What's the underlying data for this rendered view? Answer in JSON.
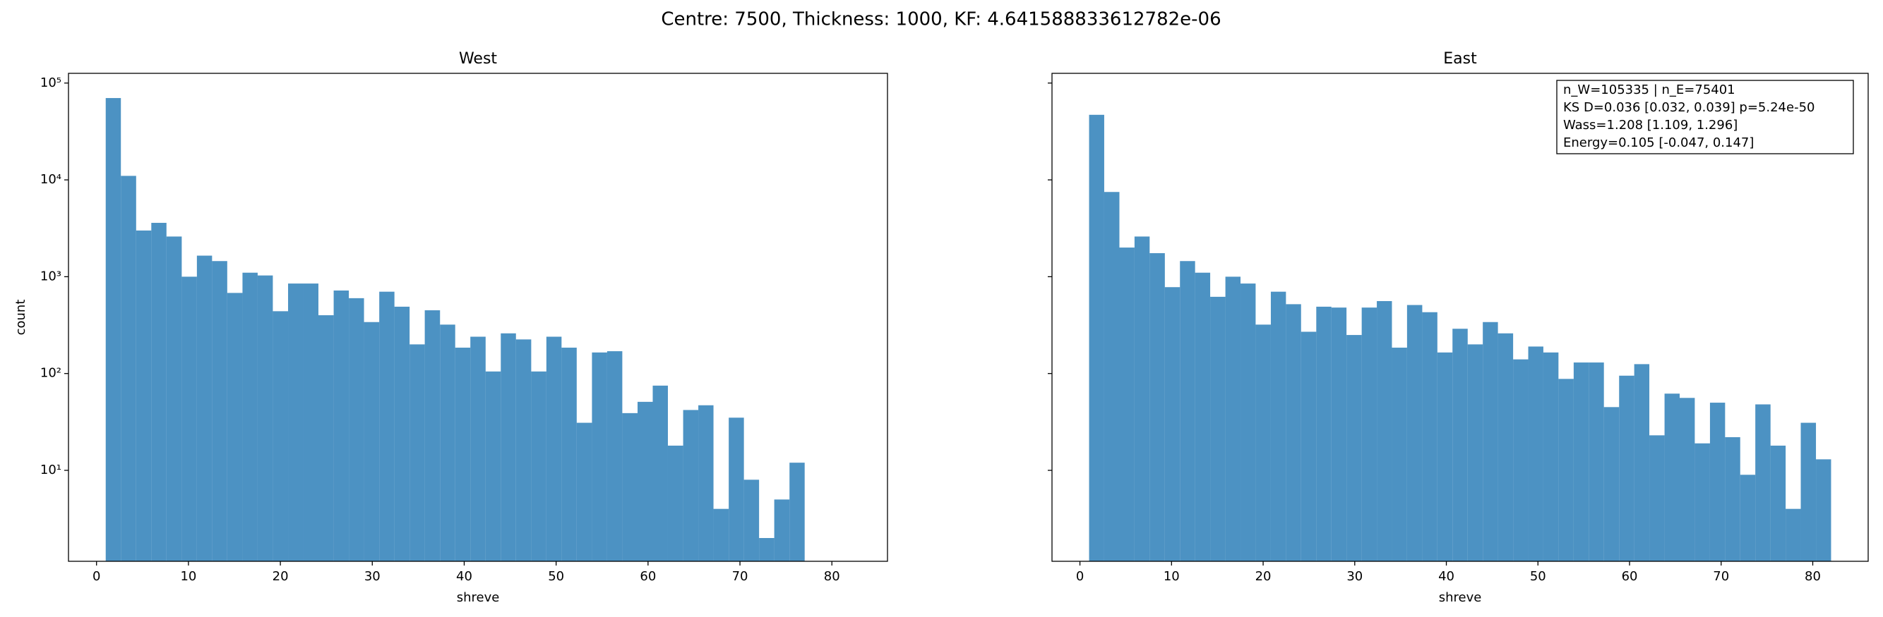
{
  "title": "Centre: 7500, Thickness: 1000, KF: 4.641588833612782e-06",
  "chart_data": [
    {
      "type": "histogram",
      "title": "West",
      "xlabel": "shreve",
      "ylabel": "count",
      "color": "#1f77b4",
      "log_y": true,
      "bins": [
        1,
        2.65,
        4.31,
        5.96,
        7.61,
        9.27,
        10.92,
        12.57,
        14.22,
        15.88,
        17.53,
        19.18,
        20.84,
        22.49,
        24.14,
        25.8,
        27.45,
        29.1,
        30.76,
        32.41,
        34.06,
        35.71,
        37.37,
        39.02,
        40.67,
        42.33,
        43.98,
        45.63,
        47.29,
        48.94,
        50.59,
        52.24,
        53.9,
        55.55,
        57.2,
        58.86,
        60.51,
        62.16,
        63.82,
        65.47,
        67.12,
        68.78,
        70.43,
        72.08,
        73.73,
        75.39,
        77.04,
        78.69,
        80.35,
        82
      ],
      "values": [
        70000,
        11000,
        3000,
        3600,
        2600,
        1000,
        1650,
        1450,
        680,
        1100,
        1030,
        440,
        850,
        850,
        400,
        720,
        600,
        340,
        700,
        490,
        200,
        450,
        320,
        185,
        240,
        105,
        260,
        225,
        105,
        240,
        185,
        31,
        165,
        170,
        39,
        51,
        75,
        18,
        42,
        47,
        4,
        35,
        8,
        2,
        5,
        12,
        0,
        0,
        0
      ],
      "xlim": [
        -3.05,
        86.05
      ],
      "xticks": [
        0,
        10,
        20,
        30,
        40,
        50,
        60,
        70,
        80
      ],
      "ylim": [
        1.15,
        126000
      ],
      "yticks": [
        {
          "value": 10,
          "label": "10¹"
        },
        {
          "value": 100,
          "label": "10²"
        },
        {
          "value": 1000,
          "label": "10³"
        },
        {
          "value": 10000,
          "label": "10⁴"
        },
        {
          "value": 100000,
          "label": "10⁵"
        }
      ]
    },
    {
      "type": "histogram",
      "title": "East",
      "xlabel": "shreve",
      "color": "#1f77b4",
      "log_y": true,
      "bins": [
        1,
        2.65,
        4.31,
        5.96,
        7.61,
        9.27,
        10.92,
        12.57,
        14.22,
        15.88,
        17.53,
        19.18,
        20.84,
        22.49,
        24.14,
        25.8,
        27.45,
        29.1,
        30.76,
        32.41,
        34.06,
        35.71,
        37.37,
        39.02,
        40.67,
        42.33,
        43.98,
        45.63,
        47.29,
        48.94,
        50.59,
        52.24,
        53.9,
        55.55,
        57.2,
        58.86,
        60.51,
        62.16,
        63.82,
        65.47,
        67.12,
        68.78,
        70.43,
        72.08,
        73.73,
        75.39,
        77.04,
        78.69,
        80.35,
        82
      ],
      "values": [
        47000,
        7500,
        2000,
        2600,
        1750,
        780,
        1450,
        1100,
        620,
        1000,
        850,
        320,
        700,
        520,
        270,
        490,
        480,
        250,
        480,
        560,
        185,
        510,
        430,
        165,
        290,
        200,
        340,
        260,
        140,
        190,
        165,
        88,
        130,
        130,
        45,
        95,
        125,
        23,
        62,
        56,
        19,
        50,
        22,
        9,
        48,
        18,
        4,
        31,
        13
      ],
      "xlim": [
        -3.05,
        86.05
      ],
      "xticks": [
        0,
        10,
        20,
        30,
        40,
        50,
        60,
        70,
        80
      ],
      "annotation": [
        "n_W=105335 | n_E=75401",
        "KS D=0.036 [0.032, 0.039]  p=5.24e-50",
        "Wass=1.208 [1.109, 1.296]",
        "Energy=0.105 [-0.047, 0.147]"
      ]
    }
  ]
}
